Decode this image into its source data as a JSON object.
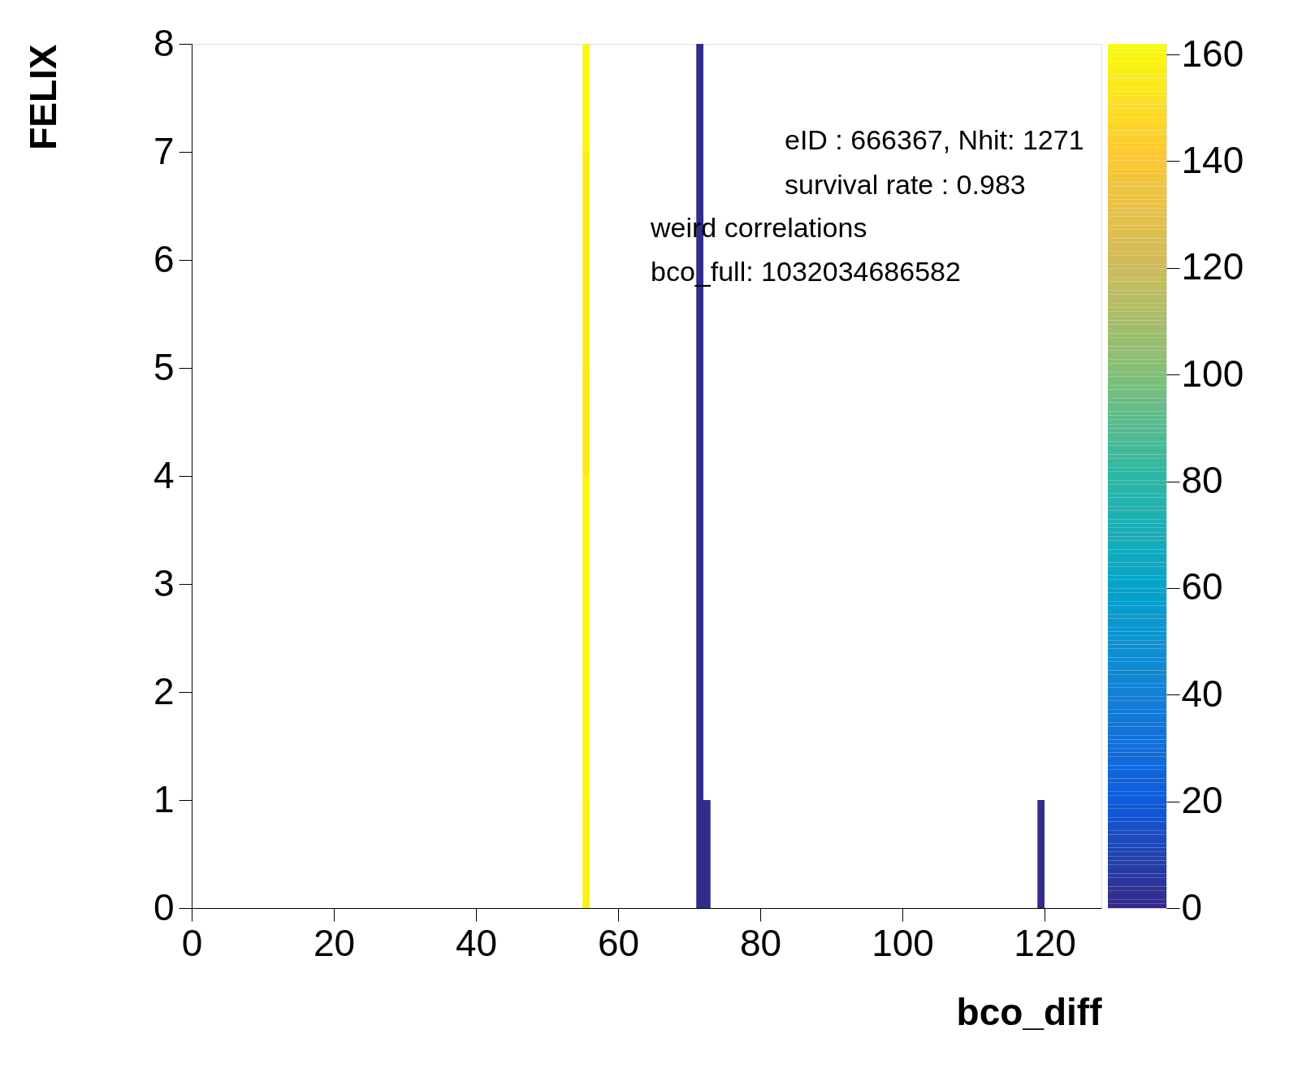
{
  "chart_data": {
    "type": "heatmap",
    "xlabel": "bco_diff",
    "ylabel": "FELIX",
    "x": [
      55.5,
      56.5,
      57.5,
      58.5,
      59.5,
      60.5,
      61.5,
      62.5,
      63.5,
      64.5,
      65.5,
      66.5,
      67.5,
      68.5,
      69.5,
      70.5,
      71.5,
      72.5,
      73.5,
      74.5,
      75.5,
      76.5,
      77.5,
      78.5,
      79.5,
      80.5,
      81.5,
      82.5,
      83.5,
      84.5,
      85.5,
      86.5,
      87.5,
      88.5,
      89.5,
      90.5,
      91.5,
      92.5,
      93.5,
      94.5,
      95.5,
      96.5,
      97.5,
      98.5,
      99.5,
      100.5,
      101.5,
      102.5,
      103.5,
      104.5,
      105.5,
      106.5,
      107.5,
      108.5,
      109.5,
      110.5,
      111.5,
      112.5,
      113.5,
      114.5,
      115.5,
      116.5,
      117.5,
      118.5,
      119.5
    ],
    "cells": [
      [
        160,
        null,
        null,
        null,
        null,
        null,
        null,
        null,
        null,
        null,
        null,
        null,
        null,
        null,
        null,
        null,
        1,
        null,
        null,
        null,
        null,
        null,
        null,
        null,
        null,
        null,
        null,
        null,
        null,
        null,
        null,
        null,
        null,
        null,
        null,
        null,
        null,
        null,
        null,
        null,
        null,
        null,
        null,
        null,
        null,
        null,
        null,
        null,
        null,
        null,
        null,
        null,
        null,
        null,
        null,
        null,
        null,
        null,
        null,
        null,
        null,
        null,
        null,
        null,
        null
      ],
      [
        157,
        null,
        null,
        null,
        null,
        null,
        null,
        null,
        null,
        null,
        null,
        null,
        null,
        null,
        null,
        null,
        1,
        null,
        null,
        null,
        null,
        null,
        null,
        null,
        null,
        null,
        null,
        null,
        null,
        null,
        null,
        null,
        null,
        null,
        null,
        null,
        null,
        null,
        null,
        null,
        null,
        null,
        null,
        null,
        null,
        null,
        null,
        null,
        null,
        null,
        null,
        null,
        null,
        null,
        null,
        null,
        null,
        null,
        null,
        null,
        null,
        null,
        null,
        null,
        null
      ],
      [
        157,
        null,
        null,
        null,
        null,
        null,
        null,
        null,
        null,
        null,
        null,
        null,
        null,
        null,
        null,
        null,
        1,
        null,
        null,
        null,
        null,
        null,
        null,
        null,
        null,
        null,
        null,
        null,
        null,
        null,
        null,
        null,
        null,
        null,
        null,
        null,
        null,
        null,
        null,
        null,
        null,
        null,
        null,
        null,
        null,
        null,
        null,
        null,
        null,
        null,
        null,
        null,
        null,
        null,
        null,
        null,
        null,
        null,
        null,
        null,
        null,
        null,
        null,
        null,
        null
      ],
      [
        155,
        null,
        null,
        null,
        null,
        null,
        null,
        null,
        null,
        null,
        null,
        null,
        null,
        null,
        null,
        null,
        1,
        null,
        null,
        null,
        null,
        null,
        null,
        null,
        null,
        null,
        null,
        null,
        null,
        null,
        null,
        null,
        null,
        null,
        null,
        null,
        null,
        null,
        null,
        null,
        null,
        null,
        null,
        null,
        null,
        null,
        null,
        null,
        null,
        null,
        null,
        null,
        null,
        null,
        null,
        null,
        null,
        null,
        null,
        null,
        null,
        null,
        null,
        null,
        null
      ],
      [
        160,
        null,
        null,
        null,
        null,
        null,
        null,
        null,
        null,
        null,
        null,
        null,
        null,
        null,
        null,
        null,
        1,
        null,
        null,
        null,
        null,
        null,
        null,
        null,
        null,
        null,
        null,
        null,
        null,
        null,
        null,
        null,
        null,
        null,
        null,
        null,
        null,
        null,
        null,
        null,
        null,
        null,
        null,
        null,
        null,
        null,
        null,
        null,
        null,
        null,
        null,
        null,
        null,
        null,
        null,
        null,
        null,
        null,
        null,
        null,
        null,
        null,
        null,
        null,
        null
      ],
      [
        160,
        null,
        null,
        null,
        null,
        null,
        null,
        null,
        null,
        null,
        null,
        null,
        null,
        null,
        null,
        null,
        1,
        null,
        null,
        null,
        null,
        null,
        null,
        null,
        null,
        null,
        null,
        null,
        null,
        null,
        null,
        null,
        null,
        null,
        null,
        null,
        null,
        null,
        null,
        null,
        null,
        null,
        null,
        null,
        null,
        null,
        null,
        null,
        null,
        null,
        null,
        null,
        null,
        null,
        null,
        null,
        null,
        null,
        null,
        null,
        null,
        null,
        null,
        null,
        null
      ],
      [
        160,
        null,
        null,
        null,
        null,
        null,
        null,
        null,
        null,
        null,
        null,
        null,
        null,
        null,
        null,
        null,
        1,
        null,
        null,
        null,
        null,
        null,
        null,
        null,
        null,
        null,
        null,
        null,
        null,
        null,
        null,
        null,
        null,
        null,
        null,
        null,
        null,
        null,
        null,
        null,
        null,
        null,
        null,
        null,
        null,
        null,
        null,
        null,
        null,
        null,
        null,
        null,
        null,
        null,
        null,
        null,
        null,
        null,
        null,
        null,
        null,
        null,
        null,
        null,
        null
      ],
      [
        158,
        null,
        null,
        null,
        null,
        null,
        null,
        null,
        null,
        null,
        null,
        null,
        null,
        null,
        null,
        null,
        1,
        1,
        null,
        null,
        null,
        null,
        null,
        null,
        null,
        null,
        null,
        null,
        null,
        null,
        null,
        null,
        null,
        null,
        null,
        null,
        null,
        null,
        null,
        null,
        null,
        null,
        null,
        null,
        null,
        null,
        null,
        null,
        null,
        null,
        null,
        null,
        null,
        null,
        null,
        null,
        null,
        null,
        null,
        null,
        null,
        null,
        null,
        null,
        1
      ]
    ],
    "xlim": [
      0,
      128
    ],
    "ylim": [
      0,
      8
    ],
    "xticks": [
      0,
      20,
      40,
      60,
      80,
      100,
      120
    ],
    "yticks": [
      0,
      1,
      2,
      3,
      4,
      5,
      6,
      7,
      8
    ],
    "clim": [
      0,
      162
    ],
    "cticks": [
      0,
      20,
      40,
      60,
      80,
      100,
      120,
      140,
      160
    ],
    "colors": [
      "#352a87",
      "#0f5cdd",
      "#1481d6",
      "#06a4ca",
      "#2eb7a4",
      "#87bf77",
      "#d1bb59",
      "#fec832",
      "#f9fb0e"
    ],
    "grid": false,
    "annotations": [
      "eID : 666367, Nhit: 1271",
      "survival rate : 0.983",
      "weird correlations",
      "bco_full: 1032034686582"
    ]
  }
}
